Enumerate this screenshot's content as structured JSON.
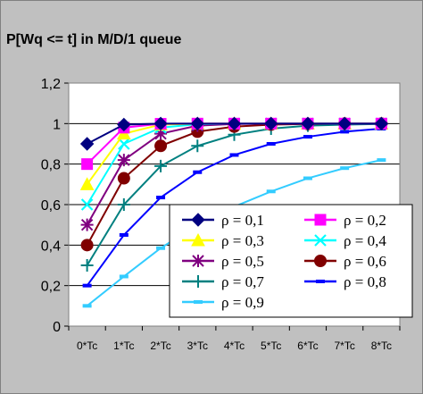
{
  "chart_data": {
    "type": "line",
    "title": "P[Wq <= t] in M/D/1 queue",
    "xlabel": "",
    "ylabel": "",
    "categories": [
      "0*Tc",
      "1*Tc",
      "2*Tc",
      "3*Tc",
      "4*Tc",
      "5*Tc",
      "6*Tc",
      "7*Tc",
      "8*Tc"
    ],
    "ylim": [
      0,
      1.2
    ],
    "yticks": [
      "0",
      "0,2",
      "0,4",
      "0,6",
      "0,8",
      "1",
      "1,2"
    ],
    "grid": "horizontal",
    "legend_position": "bottom-right inside plot",
    "series": [
      {
        "name": "ρ = 0,1",
        "color": "#000080",
        "marker": "diamond",
        "values": [
          0.9,
          0.995,
          1.0,
          1.0,
          1.0,
          1.0,
          1.0,
          1.0,
          1.0
        ]
      },
      {
        "name": "ρ = 0,2",
        "color": "#ff00ff",
        "marker": "square",
        "values": [
          0.8,
          0.98,
          0.999,
          1.0,
          1.0,
          1.0,
          1.0,
          1.0,
          1.0
        ]
      },
      {
        "name": "ρ = 0,3",
        "color": "#ffff00",
        "marker": "triangle",
        "values": [
          0.7,
          0.95,
          0.995,
          1.0,
          1.0,
          1.0,
          1.0,
          1.0,
          1.0
        ]
      },
      {
        "name": "ρ = 0,4",
        "color": "#00ffff",
        "marker": "x",
        "values": [
          0.6,
          0.9,
          0.98,
          0.997,
          1.0,
          1.0,
          1.0,
          1.0,
          1.0
        ]
      },
      {
        "name": "ρ = 0,5",
        "color": "#800080",
        "marker": "star",
        "values": [
          0.5,
          0.82,
          0.95,
          0.99,
          0.998,
          1.0,
          1.0,
          1.0,
          1.0
        ]
      },
      {
        "name": "ρ = 0,6",
        "color": "#800000",
        "marker": "circle",
        "values": [
          0.4,
          0.73,
          0.89,
          0.96,
          0.985,
          0.995,
          0.998,
          1.0,
          1.0
        ]
      },
      {
        "name": "ρ = 0,7",
        "color": "#008080",
        "marker": "plus",
        "values": [
          0.3,
          0.6,
          0.79,
          0.89,
          0.945,
          0.975,
          0.99,
          0.995,
          0.998
        ]
      },
      {
        "name": "ρ = 0,8",
        "color": "#0000ff",
        "marker": "dash",
        "values": [
          0.2,
          0.45,
          0.635,
          0.76,
          0.845,
          0.9,
          0.935,
          0.96,
          0.975
        ]
      },
      {
        "name": "ρ = 0,9",
        "color": "#33ccff",
        "marker": "dash",
        "values": [
          0.1,
          0.245,
          0.385,
          0.5,
          0.59,
          0.665,
          0.73,
          0.78,
          0.82
        ]
      }
    ]
  }
}
